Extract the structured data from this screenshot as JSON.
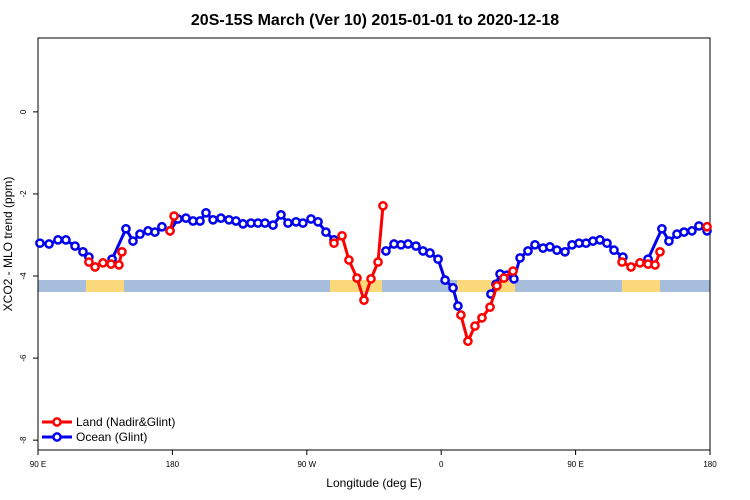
{
  "chart_data": {
    "type": "line",
    "title": "20S-15S March (Ver 10)   2015-01-01 to 2020-12-18",
    "xlabel": "Longitude (deg E)",
    "ylabel": "XCO2 - MLO trend (ppm)",
    "xlim": [
      90,
      540
    ],
    "xticks": [
      {
        "value": 90,
        "label": "90 E"
      },
      180,
      {
        "value": 270,
        "label": "90 W"
      },
      {
        "value": 360,
        "label": "0"
      },
      {
        "value": 450,
        "label": "90 E"
      },
      {
        "value": 540,
        "label": "180"
      }
    ],
    "ylim": [
      -8.24,
      1.8
    ],
    "yticks": [
      0,
      -2,
      -4,
      -6,
      -8
    ],
    "legend": "bottom-left",
    "series": [
      {
        "name": "Land (Nadir&Glint)",
        "color": "#ff0000",
        "x": [
          124.1,
          128.2,
          133.5,
          138.9,
          144.2,
          146.2,
          160,
          178.4,
          181.1,
          250,
          288.2,
          293.6,
          298.2,
          303.6,
          308.3,
          313,
          317.7,
          321,
          340,
          373.2,
          377.9,
          382.6,
          387.3,
          392.7,
          397.3,
          402,
          408.1,
          460,
          481.1,
          487.1,
          493.1,
          498.5,
          503.2,
          506.5,
          520,
          538
        ],
        "values": [
          -3.66,
          -3.78,
          -3.68,
          -3.71,
          -3.73,
          -3.41,
          null,
          -2.9,
          -2.54,
          null,
          -3.2,
          -3.02,
          -3.61,
          -4.05,
          -4.59,
          -4.07,
          -3.66,
          -2.29,
          null,
          -4.95,
          -5.59,
          -5.22,
          -5.02,
          -4.76,
          -4.24,
          -4.05,
          -3.88,
          null,
          -3.66,
          -3.78,
          -3.68,
          -3.71,
          -3.73,
          -3.41,
          null,
          -2.8
        ]
      },
      {
        "name": "Ocean (Glint)",
        "color": "#0000ee",
        "x": [
          91.3,
          97.4,
          103.4,
          108.7,
          114.8,
          120.1,
          124.1,
          132,
          139.6,
          148.9,
          153.6,
          158.3,
          163.7,
          168.3,
          173,
          178.4,
          183.7,
          189.1,
          193.8,
          198.5,
          202.5,
          207.2,
          212.5,
          217.9,
          222.6,
          227.3,
          232.6,
          237.3,
          242,
          247.4,
          252.7,
          257.4,
          262.8,
          267.4,
          272.8,
          277.5,
          282.8,
          288.2,
          305,
          323,
          328.4,
          333.1,
          337.8,
          343.1,
          347.8,
          352.5,
          357.9,
          362.6,
          367.9,
          371.2,
          382,
          393.3,
          396.7,
          399.4,
          404,
          408.7,
          412.8,
          418.1,
          422.8,
          428.2,
          432.8,
          437.5,
          442.9,
          447.6,
          452.3,
          457,
          461.6,
          466.3,
          471,
          475.7,
          481.7,
          490,
          498.5,
          507.8,
          512.5,
          517.9,
          522.6,
          527.9,
          532.6,
          538
        ],
        "values": [
          -3.2,
          -3.22,
          -3.12,
          -3.12,
          -3.27,
          -3.41,
          -3.54,
          null,
          -3.59,
          -2.85,
          -3.15,
          -2.98,
          -2.9,
          -2.93,
          -2.8,
          -2.9,
          -2.61,
          -2.59,
          -2.66,
          -2.66,
          -2.46,
          -2.63,
          -2.59,
          -2.63,
          -2.66,
          -2.73,
          -2.71,
          -2.71,
          -2.71,
          -2.76,
          -2.51,
          -2.71,
          -2.68,
          -2.71,
          -2.61,
          -2.68,
          -2.93,
          -3.12,
          null,
          -3.39,
          -3.22,
          -3.24,
          -3.22,
          -3.27,
          -3.39,
          -3.44,
          -3.59,
          -4.1,
          -4.29,
          -4.73,
          null,
          -4.44,
          -4.2,
          -3.95,
          -3.98,
          -4.07,
          -3.56,
          -3.39,
          -3.24,
          -3.32,
          -3.29,
          -3.37,
          -3.41,
          -3.24,
          -3.2,
          -3.2,
          -3.15,
          -3.12,
          -3.2,
          -3.37,
          -3.54,
          null,
          -3.59,
          -2.85,
          -3.15,
          -2.98,
          -2.93,
          -2.9,
          -2.78,
          -2.9
        ]
      }
    ]
  }
}
